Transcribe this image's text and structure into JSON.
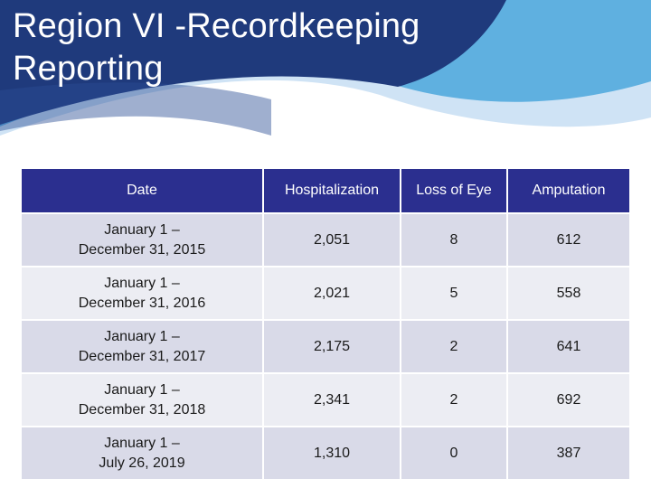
{
  "slide": {
    "title": "Region VI -Recordkeeping Reporting",
    "colors": {
      "banner_dark": "#1f3a7c",
      "banner_light": "#5fb0e0",
      "header_bg": "#2b2f8f",
      "row_bg": "#d9dae8",
      "row_alt_bg": "#ecedf3"
    }
  },
  "table": {
    "headers": [
      "Date",
      "Hospitalization",
      "Loss of Eye",
      "Amputation"
    ],
    "rows": [
      {
        "date_line1": "January 1 –",
        "date_line2": "December 31, 2015",
        "hospitalization": "2,051",
        "loss_of_eye": "8",
        "amputation": "612"
      },
      {
        "date_line1": "January 1 –",
        "date_line2": "December 31, 2016",
        "hospitalization": "2,021",
        "loss_of_eye": "5",
        "amputation": "558"
      },
      {
        "date_line1": "January 1 –",
        "date_line2": "December 31, 2017",
        "hospitalization": "2,175",
        "loss_of_eye": "2",
        "amputation": "641"
      },
      {
        "date_line1": "January 1 –",
        "date_line2": "December 31, 2018",
        "hospitalization": "2,341",
        "loss_of_eye": "2",
        "amputation": "692"
      },
      {
        "date_line1": "January 1 –",
        "date_line2": "July 26, 2019",
        "hospitalization": "1,310",
        "loss_of_eye": "0",
        "amputation": "387"
      }
    ]
  }
}
